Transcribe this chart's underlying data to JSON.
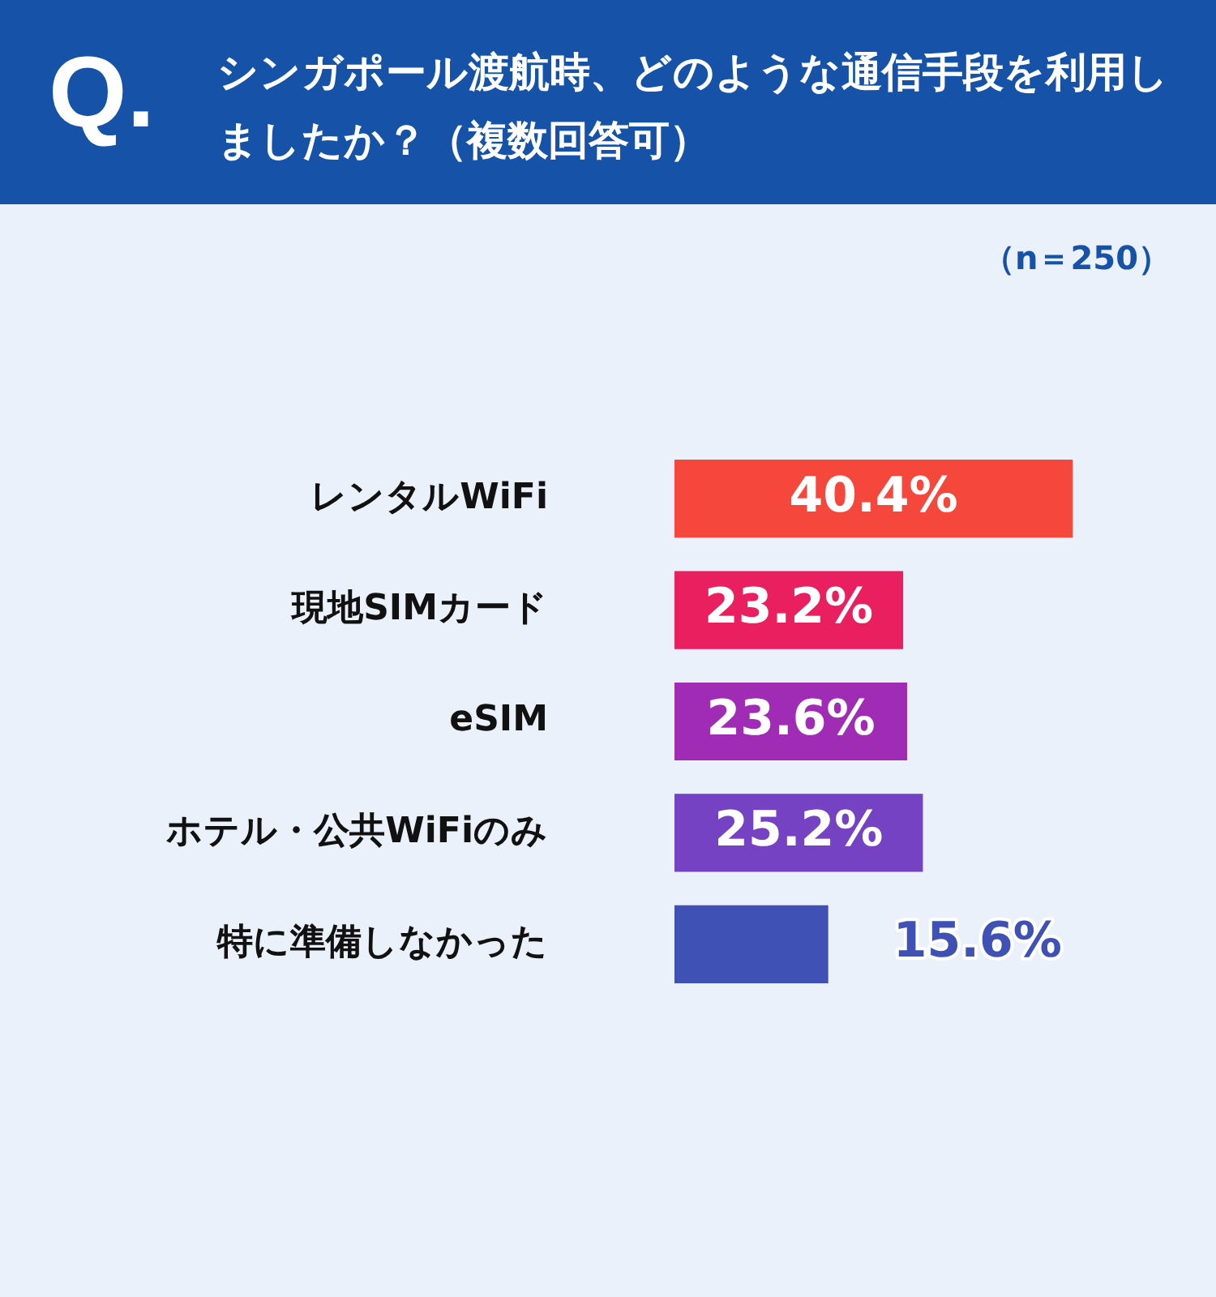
{
  "chart_data": {
    "type": "bar",
    "orientation": "horizontal",
    "title": "シンガポール渡航時、どのような通信手段を利用しましたか？（複数回答可）",
    "subtitle": "（n＝250）",
    "annotations": [
      "Q."
    ],
    "categories": [
      "レンタルWiFi",
      "現地SIMカード",
      "eSIM",
      "ホテル・公共WiFiのみ",
      "特に準備しなかった"
    ],
    "values": [
      40.4,
      23.2,
      23.6,
      25.2,
      15.6
    ],
    "value_labels": [
      "40.4%",
      "23.2%",
      "23.6%",
      "25.2%",
      "15.6%"
    ],
    "colors": [
      "#f5473b",
      "#e91f5f",
      "#a02bb4",
      "#7442c2",
      "#3f51b5"
    ],
    "grid": false,
    "legend": false
  }
}
